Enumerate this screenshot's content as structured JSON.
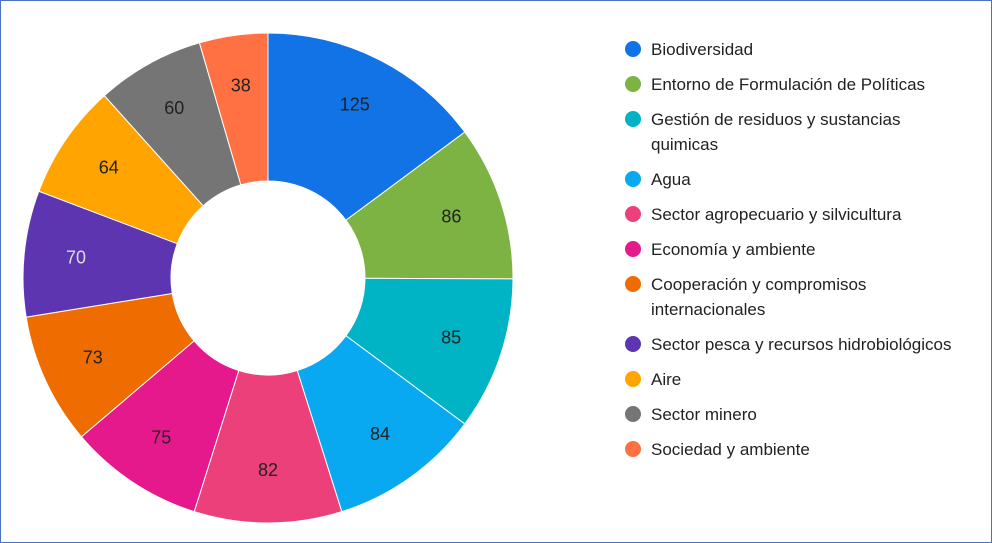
{
  "chart_data": {
    "type": "donut",
    "categories": [
      "Biodiversidad",
      "Entorno de Formulación de Políticas",
      "Gestión de residuos y sustancias quimicas",
      "Agua",
      "Sector agropecuario y silvicultura",
      "Economía y ambiente",
      "Cooperación y compromisos internacionales",
      "Sector pesca y recursos hidrobiológicos",
      "Aire",
      "Sector minero",
      "Sociedad y ambiente"
    ],
    "values": [
      125,
      86,
      85,
      84,
      82,
      75,
      73,
      70,
      64,
      60,
      38
    ],
    "colors": [
      "#1273e6",
      "#7cb342",
      "#00b4c6",
      "#08a9f0",
      "#ec407a",
      "#e6198c",
      "#ef6c00",
      "#5e35b1",
      "#ffa400",
      "#757575",
      "#ff7043"
    ],
    "legend": "right"
  }
}
